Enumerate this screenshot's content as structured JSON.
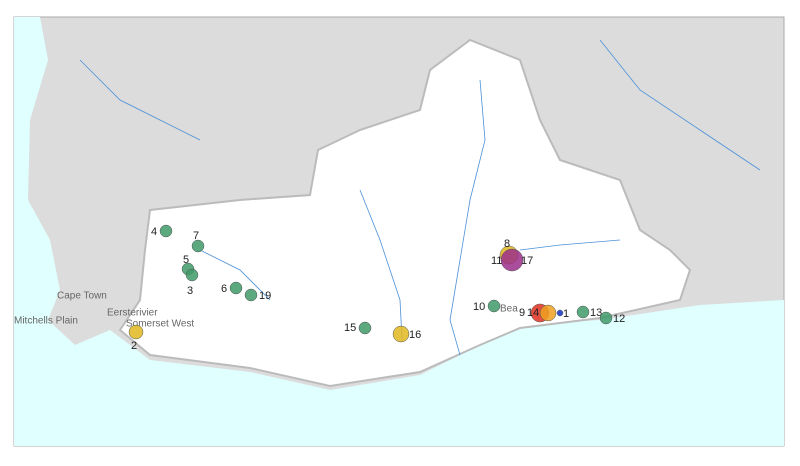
{
  "places": [
    "Cape Town",
    "Mitchells Plain",
    "Eersterivier",
    "Somerset West",
    "Bea"
  ],
  "markers": [
    {
      "label": "4",
      "color": "#3f9a6a"
    },
    {
      "label": "7",
      "color": "#3f9a6a"
    },
    {
      "label": "5",
      "color": "#3f9a6a"
    },
    {
      "label": "3",
      "color": "#3f9a6a"
    },
    {
      "label": "6",
      "color": "#3f9a6a"
    },
    {
      "label": "19",
      "color": "#3f9a6a"
    },
    {
      "label": "2",
      "color": "#e0b820"
    },
    {
      "label": "15",
      "color": "#3f9a6a"
    },
    {
      "label": "16",
      "color": "#e0b820"
    },
    {
      "label": "8",
      "color": "#e0b820"
    },
    {
      "label": "11",
      "color": "#9b2f8a"
    },
    {
      "label": "17",
      "color": "#9b2f8a"
    },
    {
      "label": "10",
      "color": "#3f9a6a"
    },
    {
      "label": "9",
      "color": "#e03020"
    },
    {
      "label": "14",
      "color": "#f0a020"
    },
    {
      "label": "1",
      "color": "#1030c0"
    },
    {
      "label": "13",
      "color": "#3f9a6a"
    },
    {
      "label": "12",
      "color": "#3f9a6a"
    }
  ]
}
